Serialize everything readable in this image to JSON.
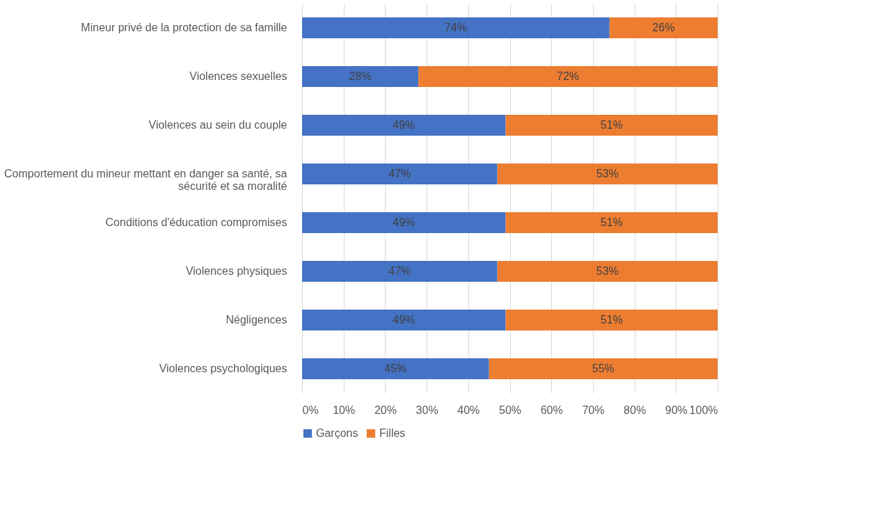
{
  "chart_data": {
    "type": "bar",
    "orientation": "horizontal",
    "stacked": true,
    "categories": [
      "Mineur privé de la protection de sa famille",
      "Violences sexuelles",
      "Violences au sein du couple",
      "Comportement du mineur mettant en danger sa santé, sa sécurité et sa moralité",
      "Conditions d'éducation compromises",
      "Violences physiques",
      "Négligences",
      "Violences psychologiques"
    ],
    "series": [
      {
        "name": "Garçons",
        "color": "#4472c4",
        "values": [
          74,
          28,
          49,
          47,
          49,
          47,
          49,
          45
        ],
        "value_labels": [
          "74%",
          "28%",
          "49%",
          "47%",
          "49%",
          "47%",
          "49%",
          "45%"
        ]
      },
      {
        "name": "Filles",
        "color": "#ed7d31",
        "values": [
          26,
          72,
          51,
          53,
          51,
          53,
          51,
          55
        ],
        "value_labels": [
          "26%",
          "72%",
          "51%",
          "53%",
          "51%",
          "53%",
          "51%",
          "55%"
        ]
      }
    ],
    "xlim": [
      0,
      100
    ],
    "xticks": [
      {
        "value": 0,
        "label": "0%"
      },
      {
        "value": 10,
        "label": "10%"
      },
      {
        "value": 20,
        "label": "20%"
      },
      {
        "value": 30,
        "label": "30%"
      },
      {
        "value": 40,
        "label": "40%"
      },
      {
        "value": 50,
        "label": "50%"
      },
      {
        "value": 60,
        "label": "60%"
      },
      {
        "value": 70,
        "label": "70%"
      },
      {
        "value": 80,
        "label": "80%"
      },
      {
        "value": 90,
        "label": "90%"
      },
      {
        "value": 100,
        "label": "100%"
      }
    ],
    "grid": "x",
    "legend": "bottom"
  }
}
